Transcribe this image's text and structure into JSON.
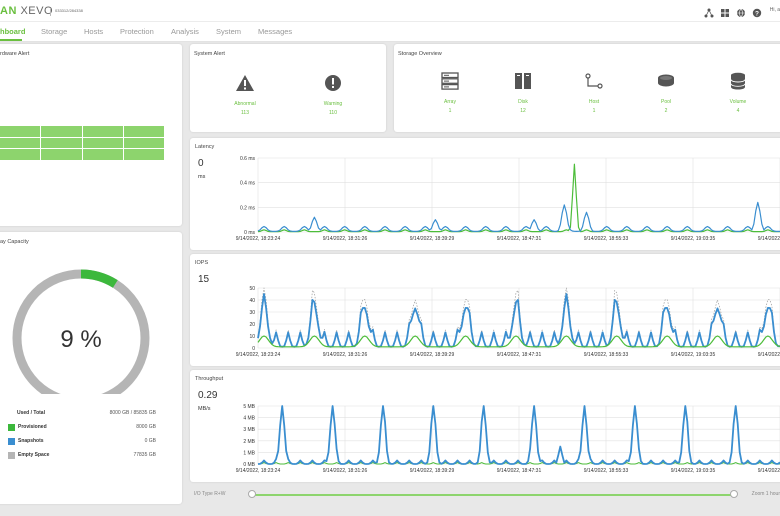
{
  "topbar": {
    "logo_brand": "AN",
    "logo_product": "XEVO",
    "serial": "033312/284338",
    "user": "Hi, a"
  },
  "nav": [
    "hboard",
    "Storage",
    "Hosts",
    "Protection",
    "Analysis",
    "System",
    "Messages"
  ],
  "hardware_alert": {
    "title": "rdware Alert"
  },
  "system_alert": {
    "title": "System Alert",
    "items": [
      {
        "label": "Abnormal",
        "value": "113",
        "icon": "warning-triangle-icon"
      },
      {
        "label": "Warning",
        "value": "110",
        "icon": "exclamation-circle-icon"
      }
    ]
  },
  "storage_overview": {
    "title": "Storage Overview",
    "items": [
      {
        "label": "Array",
        "value": "1",
        "icon": "server-icon"
      },
      {
        "label": "Disk",
        "value": "12",
        "icon": "disk-icon"
      },
      {
        "label": "Host",
        "value": "1",
        "icon": "host-icon"
      },
      {
        "label": "Pool",
        "value": "2",
        "icon": "pool-icon"
      },
      {
        "label": "Volume",
        "value": "4",
        "icon": "volume-icon"
      }
    ]
  },
  "capacity": {
    "title": "ay Capacity",
    "percent_label": "9 %",
    "percent": 9,
    "colors": {
      "provisioned": "#3cb83c",
      "snapshots": "#3a8ed0",
      "empty": "#b5b5b5"
    },
    "rows": [
      {
        "label": "Used / Total",
        "value": "8000 GB / 85835 GB"
      },
      {
        "label": "Provisioned",
        "value": "8000 GB"
      },
      {
        "label": "Snapshots",
        "value": "0 GB"
      },
      {
        "label": "Empty Space",
        "value": "77835 GB"
      }
    ]
  },
  "charts": {
    "latency": {
      "title": "Latency",
      "big_value": "0",
      "big_unit": "ms",
      "y_ticks": [
        "0.6 ms",
        "0.4 ms",
        "0.2 ms",
        "0 ms"
      ],
      "x_ticks": [
        "9/14/2022, 18:23:24",
        "9/14/2022, 18:31:26",
        "9/14/2022, 18:39:29",
        "9/14/2022, 18:47:31",
        "9/14/2022, 18:55:33",
        "9/14/2022, 19:03:35",
        "9/14/2022, 19:13:08"
      ]
    },
    "iops": {
      "title": "IOPS",
      "big_value": "15",
      "big_unit": "",
      "y_ticks": [
        "50",
        "40",
        "30",
        "20",
        "10",
        "0"
      ],
      "x_ticks": [
        "9/14/2022, 18:23:24",
        "9/14/2022, 18:31:26",
        "9/14/2022, 18:39:29",
        "9/14/2022, 18:47:31",
        "9/14/2022, 18:55:33",
        "9/14/2022, 19:03:35",
        "9/14/2022, 19:13:08"
      ]
    },
    "throughput": {
      "title": "Throughput",
      "big_value": "0.29",
      "big_unit": "MB/s",
      "y_ticks": [
        "5 MB",
        "4 MB",
        "3 MB",
        "2 MB",
        "1 MB",
        "0 MB"
      ],
      "x_ticks": [
        "9/14/2022, 18:23:24",
        "9/14/2022, 18:31:26",
        "9/14/2022, 18:39:29",
        "9/14/2022, 18:47:31",
        "9/14/2022, 18:55:33",
        "9/14/2022, 19:03:35",
        "9/14/2022, 19:13:08"
      ]
    }
  },
  "bottom": {
    "io_type": "I/O Type R+W",
    "zoom": "Zoom 1 hour"
  },
  "colors": {
    "accent": "#6abf3f",
    "series_blue": "#3a8ed0",
    "series_green": "#4dbd3a"
  }
}
